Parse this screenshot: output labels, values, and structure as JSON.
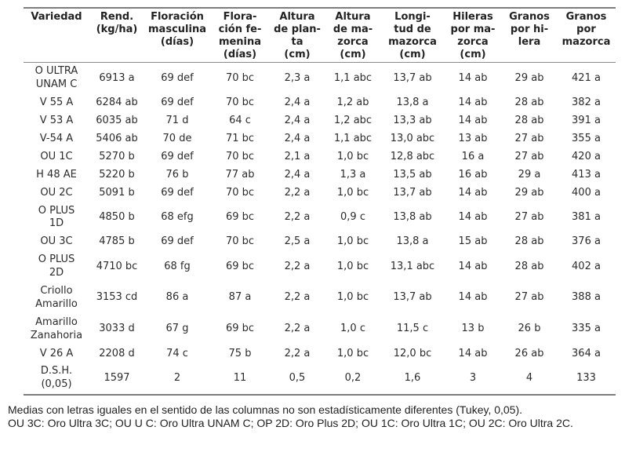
{
  "table": {
    "columns": [
      {
        "id": "variedad",
        "label": "Variedad"
      },
      {
        "id": "rendimiento",
        "label": "Rend.\n(kg/ha)"
      },
      {
        "id": "flor-masculina",
        "label": "Floración\nmasculina\n(días)"
      },
      {
        "id": "flor-femenina",
        "label": "Flora-\nción fe-\nmenina\n(días)"
      },
      {
        "id": "altura-planta",
        "label": "Altura\nde plan-\nta\n(cm)"
      },
      {
        "id": "altura-mazorca",
        "label": "Altura\nde ma-\nzorca\n(cm)"
      },
      {
        "id": "longitud-mazorca",
        "label": "Longi-\ntud de\nmazorca\n(cm)"
      },
      {
        "id": "hileras-mazorca",
        "label": "Hileras\npor ma-\nzorca\n(cm)"
      },
      {
        "id": "granos-hilera",
        "label": "Granos\npor hi-\nlera"
      },
      {
        "id": "granos-mazorca",
        "label": "Granos\npor\nmazorca"
      }
    ],
    "rows": [
      {
        "variety": "O ULTRA\nUNAM C",
        "values": [
          "6913 a",
          "69 def",
          "70 bc",
          "2,3 a",
          "1,1 abc",
          "13,7 ab",
          "14 ab",
          "29 ab",
          "421 a"
        ]
      },
      {
        "variety": "V 55 A",
        "values": [
          "6284 ab",
          "69 def",
          "70 bc",
          "2,4 a",
          "1,2 ab",
          "13,8 a",
          "14 ab",
          "28 ab",
          "382 a"
        ]
      },
      {
        "variety": "V 53 A",
        "values": [
          "6035 ab",
          "71 d",
          "64 c",
          "2,4 a",
          "1,2 abc",
          "13,3 ab",
          "14 ab",
          "28 ab",
          "391 a"
        ]
      },
      {
        "variety": "V-54 A",
        "values": [
          "5406 ab",
          "70 de",
          "71 bc",
          "2,4 a",
          "1,1 abc",
          "13,0 abc",
          "13 ab",
          "27 ab",
          "355 a"
        ]
      },
      {
        "variety": "OU 1C",
        "values": [
          "5270 b",
          "69 def",
          "70 bc",
          "2,1 a",
          "1,0 bc",
          "12,8 abc",
          "16 a",
          "27 ab",
          "420 a"
        ]
      },
      {
        "variety": "H 48 AE",
        "values": [
          "5220 b",
          "76 b",
          "77 ab",
          "2,4 a",
          "1,3 a",
          "13,5 ab",
          "16 ab",
          "29 a",
          "413 a"
        ]
      },
      {
        "variety": "OU 2C",
        "values": [
          "5091 b",
          "69 def",
          "70 bc",
          "2,2 a",
          "1,0 bc",
          "13,7 ab",
          "14 ab",
          "29 ab",
          "400 a"
        ]
      },
      {
        "variety": "O PLUS\n1D",
        "values": [
          "4850 b",
          "68 efg",
          "69 bc",
          "2,2 a",
          "0,9  c",
          "13,8 ab",
          "14 ab",
          "27 ab",
          "381 a"
        ]
      },
      {
        "variety": "OU 3C",
        "values": [
          "4785 b",
          "69 def",
          "70 bc",
          "2,5 a",
          "1,0 bc",
          "13,8 a",
          "15 ab",
          "28 ab",
          "376 a"
        ]
      },
      {
        "variety": "O PLUS\n2D",
        "values": [
          "4710 bc",
          "68 fg",
          "69 bc",
          "2,2 a",
          "1,0 bc",
          "13,1 abc",
          "14 ab",
          "28 ab",
          "402 a"
        ]
      },
      {
        "variety": "Criollo\nAmarillo",
        "values": [
          "3153 cd",
          "86 a",
          "87 a",
          "2,2 a",
          "1,0 bc",
          "13,7 ab",
          "14 ab",
          "27 ab",
          "388 a"
        ]
      },
      {
        "variety": "Amarillo\nZanahoria",
        "values": [
          "3033 d",
          "67 g",
          "69 bc",
          "2,2 a",
          "1,0 c",
          "11,5 c",
          "13 b",
          "26 b",
          "335 a"
        ]
      },
      {
        "variety": "V 26 A",
        "values": [
          "2208 d",
          "74 c",
          "75 b",
          "2,2 a",
          "1,0 bc",
          "12,0 bc",
          "14 ab",
          "26 ab",
          "364 a"
        ]
      },
      {
        "variety": "D.S.H.\n(0,05)",
        "values": [
          "1597",
          "2",
          "11",
          "0,5",
          "0,2",
          "1,6",
          "3",
          "4",
          "133"
        ]
      }
    ]
  },
  "footnotes": [
    "Medias con letras iguales en el sentido de las columnas no son estadísticamente diferentes (Tukey, 0,05).",
    "OU 3C: Oro Ultra 3C; OU U C: Oro Ultra UNAM C; OP 2D: Oro Plus 2D; OU 1C: Oro Ultra 1C; OU 2C: Oro Ultra 2C."
  ]
}
